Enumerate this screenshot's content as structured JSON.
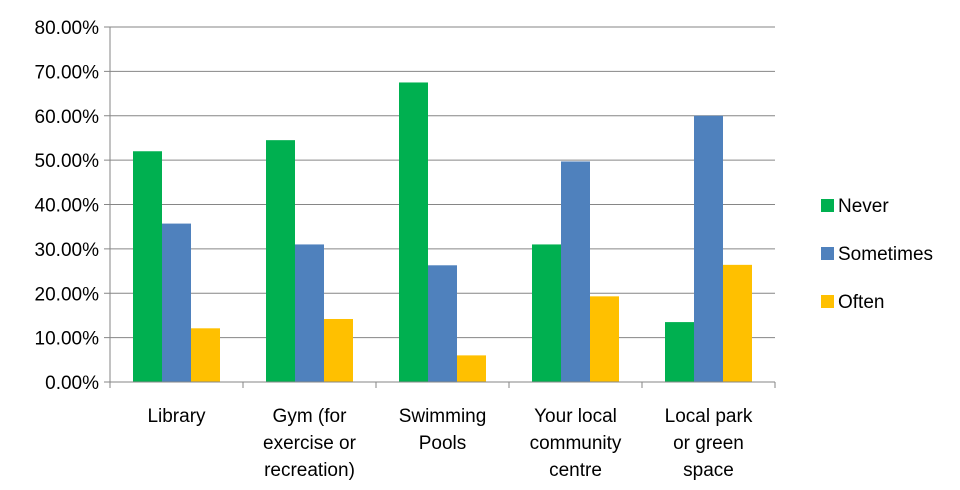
{
  "chart_data": {
    "type": "bar",
    "categories": [
      [
        "Library"
      ],
      [
        "Gym (for",
        "exercise or",
        "recreation)"
      ],
      [
        "Swimming",
        "Pools"
      ],
      [
        "Your local",
        "community",
        "centre"
      ],
      [
        "Local park",
        "or green",
        "space"
      ]
    ],
    "series": [
      {
        "name": "Never",
        "color": "#00b050",
        "values": [
          52.0,
          54.5,
          67.5,
          31.0,
          13.5
        ]
      },
      {
        "name": "Sometimes",
        "color": "#4f81bd",
        "values": [
          35.7,
          31.0,
          26.3,
          49.7,
          60.0
        ]
      },
      {
        "name": "Often",
        "color": "#ffc000",
        "values": [
          12.1,
          14.2,
          6.0,
          19.3,
          26.4
        ]
      }
    ],
    "y_ticks": [
      "0.00%",
      "10.00%",
      "20.00%",
      "30.00%",
      "40.00%",
      "50.00%",
      "60.00%",
      "70.00%",
      "80.00%"
    ],
    "ylim": [
      0,
      80
    ],
    "grid": true,
    "legend": "right"
  }
}
